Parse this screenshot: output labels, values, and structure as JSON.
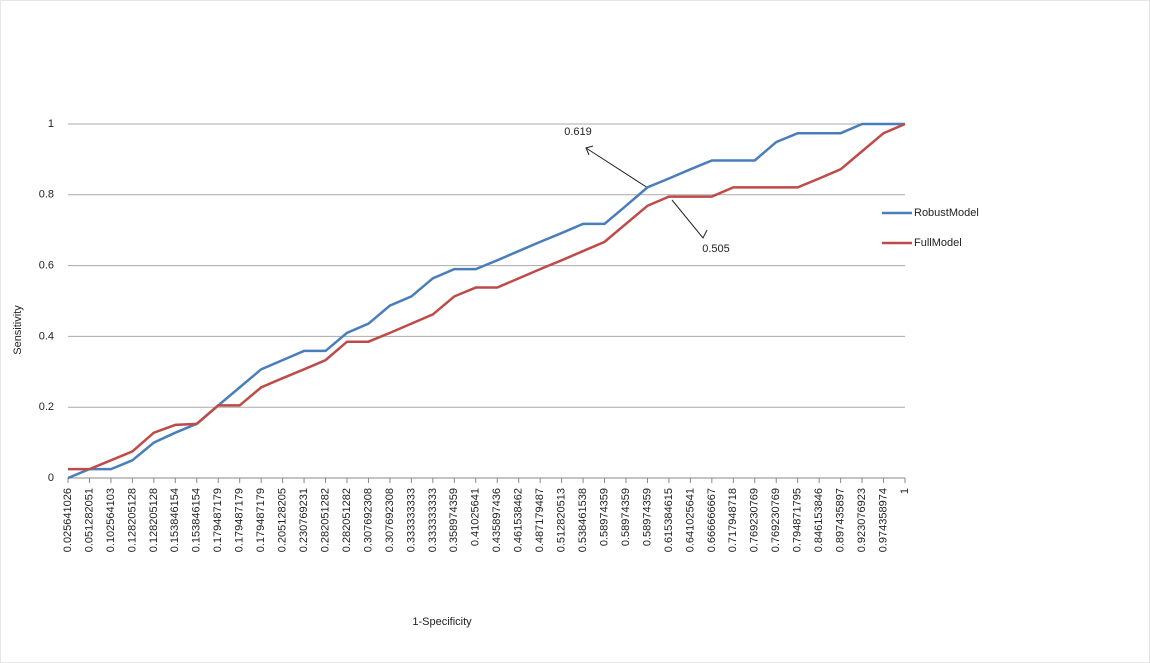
{
  "chart_data": {
    "type": "line",
    "x_label": "1-Specificity",
    "y_label": "Sensitivity",
    "categories": [
      "0.025641026",
      "0.051282051",
      "0.102564103",
      "0.128205128",
      "0.128205128",
      "0.153846154",
      "0.153846154",
      "0.179487179",
      "0.179487179",
      "0.179487179",
      "0.205128205",
      "0.230769231",
      "0.282051282",
      "0.282051282",
      "0.307692308",
      "0.307692308",
      "0.333333333",
      "0.333333333",
      "0.358974359",
      "0.41025641",
      "0.435897436",
      "0.461538462",
      "0.487179487",
      "0.512820513",
      "0.538461538",
      "0.58974359",
      "0.58974359",
      "0.58974359",
      "0.615384615",
      "0.641025641",
      "0.666666667",
      "0.717948718",
      "0.769230769",
      "0.769230769",
      "0.794871795",
      "0.846153846",
      "0.897435897",
      "0.923076923",
      "0.974358974",
      "1"
    ],
    "series": [
      {
        "name": "RobustModel",
        "color": "#4a7ebb",
        "values": [
          0,
          0.025,
          0.025,
          0.05,
          0.1,
          0.128,
          0.153,
          0.205,
          0.256,
          0.307,
          0.333,
          0.359,
          0.359,
          0.41,
          0.436,
          0.487,
          0.513,
          0.564,
          0.59,
          0.59,
          0.615,
          0.641,
          0.667,
          0.692,
          0.718,
          0.718,
          0.769,
          0.821,
          0.846,
          0.872,
          0.897,
          0.897,
          0.897,
          0.949,
          0.974,
          0.974,
          0.974,
          1,
          1,
          1
        ]
      },
      {
        "name": "FullModel",
        "color": "#be4b48",
        "values": [
          0.025,
          0.025,
          0.05,
          0.075,
          0.128,
          0.15,
          0.153,
          0.205,
          0.205,
          0.256,
          0.282,
          0.307,
          0.333,
          0.385,
          0.385,
          0.41,
          0.436,
          0.462,
          0.513,
          0.538,
          0.538,
          0.564,
          0.59,
          0.615,
          0.641,
          0.667,
          0.718,
          0.769,
          0.795,
          0.795,
          0.795,
          0.821,
          0.821,
          0.821,
          0.821,
          0.846,
          0.872,
          0.923,
          0.974,
          1
        ]
      }
    ],
    "ylim": [
      0,
      1
    ],
    "yticks": [
      0,
      0.2,
      0.4,
      0.6,
      0.8,
      1
    ],
    "grid": true,
    "legend": "right",
    "annotations": [
      "0.619",
      "0.505"
    ]
  }
}
